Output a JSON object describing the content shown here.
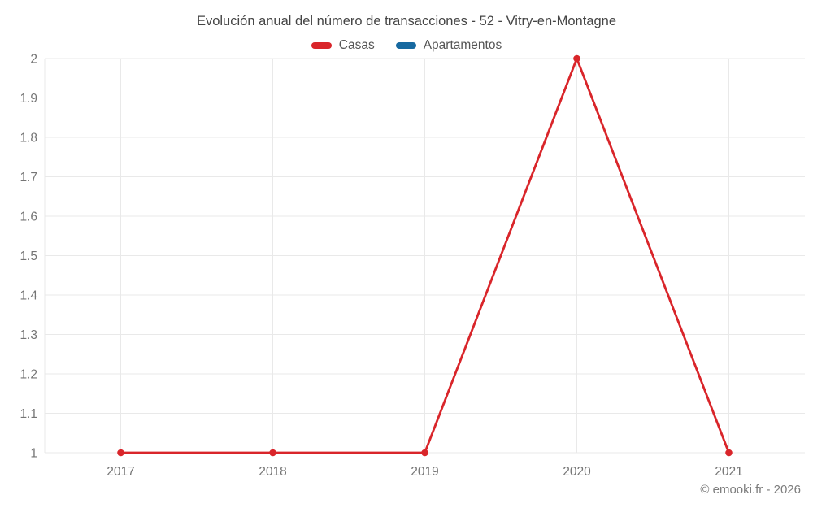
{
  "chart_data": {
    "type": "line",
    "title": "Evolución anual del número de transacciones - 52 - Vitry-en-Montagne",
    "x": [
      "2017",
      "2018",
      "2019",
      "2020",
      "2021"
    ],
    "series": [
      {
        "name": "Casas",
        "color": "#d9252a",
        "values": [
          1,
          1,
          1,
          2,
          1
        ]
      },
      {
        "name": "Apartamentos",
        "color": "#1769a0",
        "values": []
      }
    ],
    "ylim": [
      1,
      2
    ],
    "ytick_step": 0.1,
    "ytick_labels": [
      "1",
      "1.1",
      "1.2",
      "1.3",
      "1.4",
      "1.5",
      "1.6",
      "1.7",
      "1.8",
      "1.9",
      "2"
    ],
    "grid": true,
    "grid_color": "#e9e9e9",
    "legend_position": "top",
    "xlabel": "",
    "ylabel": ""
  },
  "footer": {
    "copyright": "© emooki.fr - 2026"
  }
}
